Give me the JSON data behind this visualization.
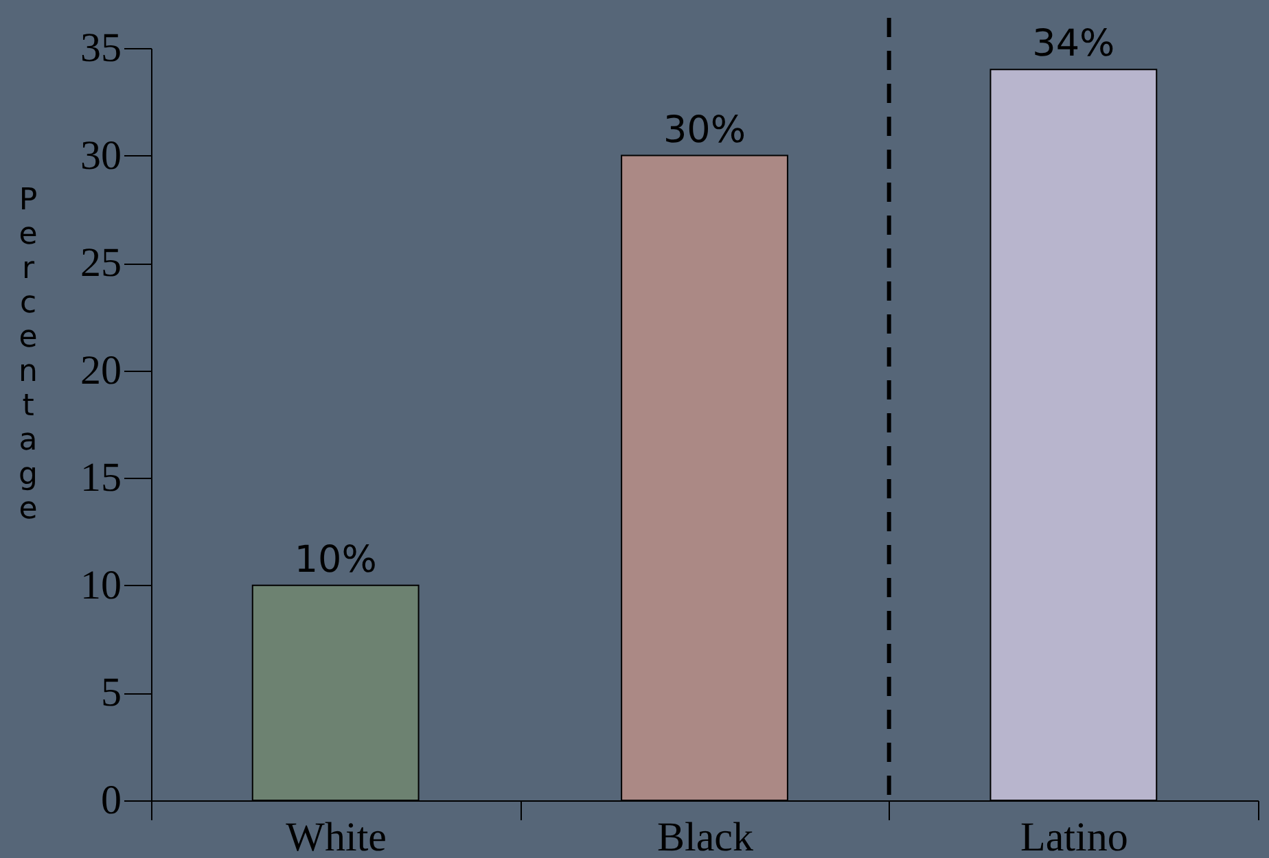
{
  "chart_data": {
    "type": "bar",
    "ylabel": "Percentage",
    "categories": [
      "White",
      "Black",
      "Latino"
    ],
    "values": [
      10,
      30,
      34
    ],
    "colors": [
      "#6d8271",
      "#ab8985",
      "#b8b5cd"
    ],
    "value_labels": [
      "10%",
      "30%",
      "34%"
    ],
    "ylim": [
      0,
      35
    ],
    "yticks": [
      0,
      5,
      10,
      15,
      20,
      25,
      30,
      35
    ],
    "grid": false
  }
}
